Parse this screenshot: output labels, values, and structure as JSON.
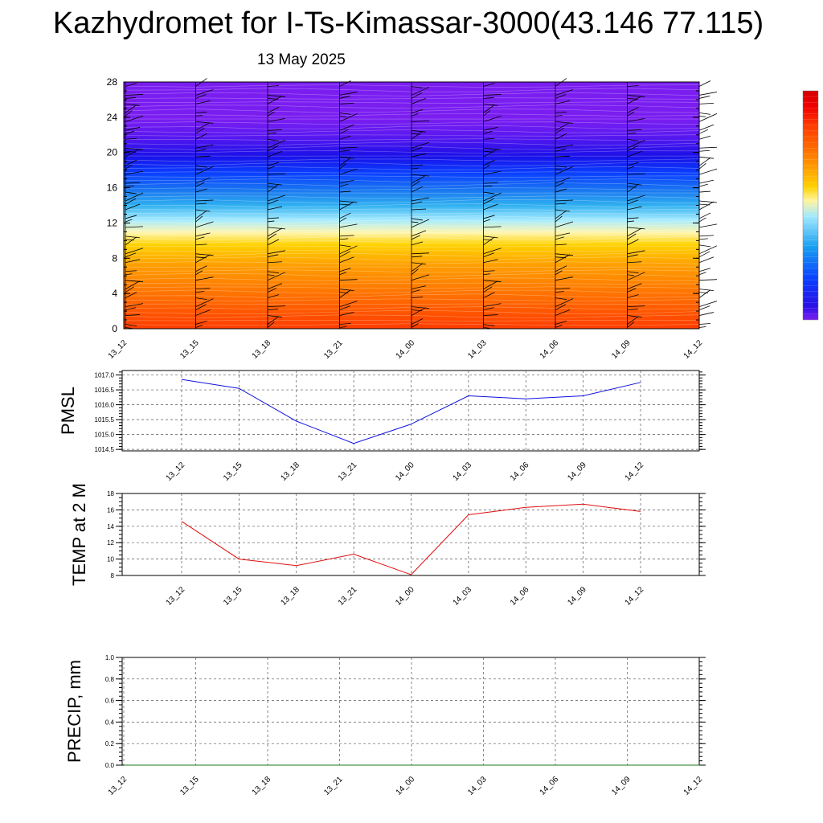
{
  "header": {
    "title": "Kazhydromet for I-Ts-Kimassar-3000(43.146 77.115)",
    "date": "13 May 2025"
  },
  "chart_data": [
    {
      "type": "heatmap",
      "title": "",
      "xlabel": "",
      "ylabel": "",
      "x": [
        "13_12",
        "13_15",
        "13_18",
        "13_21",
        "14_00",
        "14_03",
        "14_06",
        "14_09",
        "14_12"
      ],
      "yticks": [
        0,
        4,
        8,
        12,
        16,
        20,
        24,
        28
      ],
      "ylim": [
        0,
        28
      ],
      "colorbar": {
        "colors": [
          "#7a1ef0",
          "#2a10e6",
          "#0a40ff",
          "#1aa0f0",
          "#a0e8ff",
          "#fff4a0",
          "#ffd200",
          "#ffa000",
          "#ff6a00",
          "#ff3a00",
          "#f00000",
          "#d40000"
        ]
      },
      "wind_barbs": true
    },
    {
      "type": "line",
      "ylabel": "PMSL",
      "x": [
        "13_12",
        "13_15",
        "13_18",
        "13_21",
        "14_00",
        "14_03",
        "14_06",
        "14_09",
        "14_12"
      ],
      "series": [
        {
          "values": [
            1016.85,
            1016.55,
            1015.45,
            1014.7,
            1015.35,
            1016.3,
            1016.2,
            1016.3,
            1016.75
          ],
          "color": "#1010e0"
        }
      ],
      "yticks": [
        "1014.5",
        "1015.0",
        "1015.5",
        "1016.0",
        "1016.5",
        "1017.0"
      ],
      "ylim": [
        1014.45,
        1017.15
      ],
      "grid": true
    },
    {
      "type": "line",
      "ylabel": "TEMP at 2 M",
      "x": [
        "13_12",
        "13_15",
        "13_18",
        "13_21",
        "14_00",
        "14_03",
        "14_06",
        "14_09",
        "14_12"
      ],
      "series": [
        {
          "values": [
            14.6,
            10.0,
            9.2,
            10.6,
            8.1,
            15.4,
            16.3,
            16.7,
            15.8
          ],
          "color": "#e01010"
        }
      ],
      "yticks": [
        "8",
        "10",
        "12",
        "14",
        "16",
        "18"
      ],
      "ylim": [
        8,
        18
      ],
      "grid": true
    },
    {
      "type": "line",
      "ylabel": "PRECIP, mm",
      "x": [
        "13_12",
        "13_15",
        "13_18",
        "13_21",
        "14_00",
        "14_03",
        "14_06",
        "14_09",
        "14_12"
      ],
      "series": [
        {
          "values": [
            0,
            0,
            0,
            0,
            0,
            0,
            0,
            0,
            0
          ],
          "color": "#1a7a1a"
        }
      ],
      "yticks": [
        "0.0",
        "0.2",
        "0.4",
        "0.6",
        "0.8",
        "1.0"
      ],
      "ylim": [
        0,
        1
      ],
      "grid": true
    }
  ]
}
